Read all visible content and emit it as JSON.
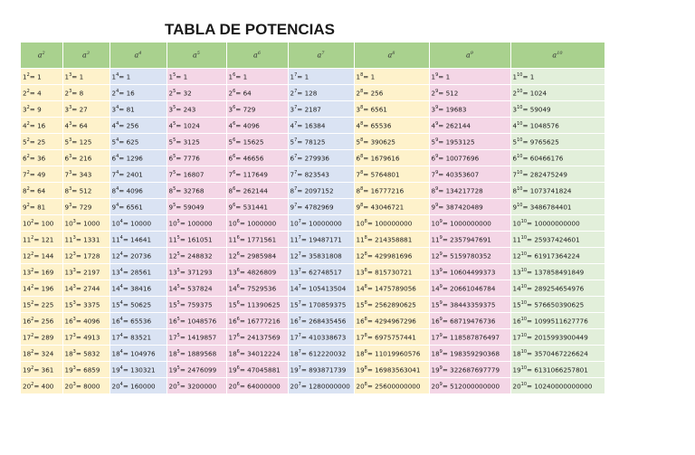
{
  "title": "TABLA DE POTENCIAS",
  "headers": [
    "a",
    "a",
    "a",
    "a",
    "a",
    "a",
    "a",
    "a",
    "a"
  ],
  "exponents": [
    "2",
    "3",
    "4",
    "5",
    "6",
    "7",
    "8",
    "9",
    "10"
  ],
  "bases": [
    "1",
    "2",
    "3",
    "4",
    "5",
    "6",
    "7",
    "8",
    "9",
    "10",
    "11",
    "12",
    "13",
    "14",
    "15",
    "16",
    "17",
    "18",
    "19",
    "20"
  ],
  "values": [
    [
      "1",
      "1",
      "1",
      "1",
      "1",
      "1",
      "1",
      "1",
      "1"
    ],
    [
      "4",
      "8",
      "16",
      "32",
      "64",
      "128",
      "256",
      "512",
      "1024"
    ],
    [
      "9",
      "27",
      "81",
      "243",
      "729",
      "2187",
      "6561",
      "19683",
      "59049"
    ],
    [
      "16",
      "64",
      "256",
      "1024",
      "4096",
      "16384",
      "65536",
      "262144",
      "1048576"
    ],
    [
      "25",
      "125",
      "625",
      "3125",
      "15625",
      "78125",
      "390625",
      "1953125",
      "9765625"
    ],
    [
      "36",
      "216",
      "1296",
      "7776",
      "46656",
      "279936",
      "1679616",
      "10077696",
      "60466176"
    ],
    [
      "49",
      "343",
      "2401",
      "16807",
      "117649",
      "823543",
      "5764801",
      "40353607",
      "282475249"
    ],
    [
      "64",
      "512",
      "4096",
      "32768",
      "262144",
      "2097152",
      "16777216",
      "134217728",
      "1073741824"
    ],
    [
      "81",
      "729",
      "6561",
      "59049",
      "531441",
      "4782969",
      "43046721",
      "387420489",
      "3486784401"
    ],
    [
      "100",
      "1000",
      "10000",
      "100000",
      "1000000",
      "10000000",
      "100000000",
      "1000000000",
      "10000000000"
    ],
    [
      "121",
      "1331",
      "14641",
      "161051",
      "1771561",
      "19487171",
      "214358881",
      "2357947691",
      "25937424601"
    ],
    [
      "144",
      "1728",
      "20736",
      "248832",
      "2985984",
      "35831808",
      "429981696",
      "5159780352",
      "61917364224"
    ],
    [
      "169",
      "2197",
      "28561",
      "371293",
      "4826809",
      "62748517",
      "815730721",
      "10604499373",
      "137858491849"
    ],
    [
      "196",
      "2744",
      "38416",
      "537824",
      "7529536",
      "105413504",
      "1475789056",
      "20661046784",
      "289254654976"
    ],
    [
      "225",
      "3375",
      "50625",
      "759375",
      "11390625",
      "170859375",
      "2562890625",
      "38443359375",
      "576650390625"
    ],
    [
      "256",
      "4096",
      "65536",
      "1048576",
      "16777216",
      "268435456",
      "4294967296",
      "68719476736",
      "1099511627776"
    ],
    [
      "289",
      "4913",
      "83521",
      "1419857",
      "24137569",
      "410338673",
      "6975757441",
      "118587876497",
      "2015993900449"
    ],
    [
      "324",
      "5832",
      "104976",
      "1889568",
      "34012224",
      "612220032",
      "11019960576",
      "198359290368",
      "3570467226624"
    ],
    [
      "361",
      "6859",
      "130321",
      "2476099",
      "47045881",
      "893871739",
      "16983563041",
      "322687697779",
      "6131066257801"
    ],
    [
      "400",
      "8000",
      "160000",
      "3200000",
      "64000000",
      "1280000000",
      "25600000000",
      "512000000000",
      "10240000000000"
    ]
  ]
}
